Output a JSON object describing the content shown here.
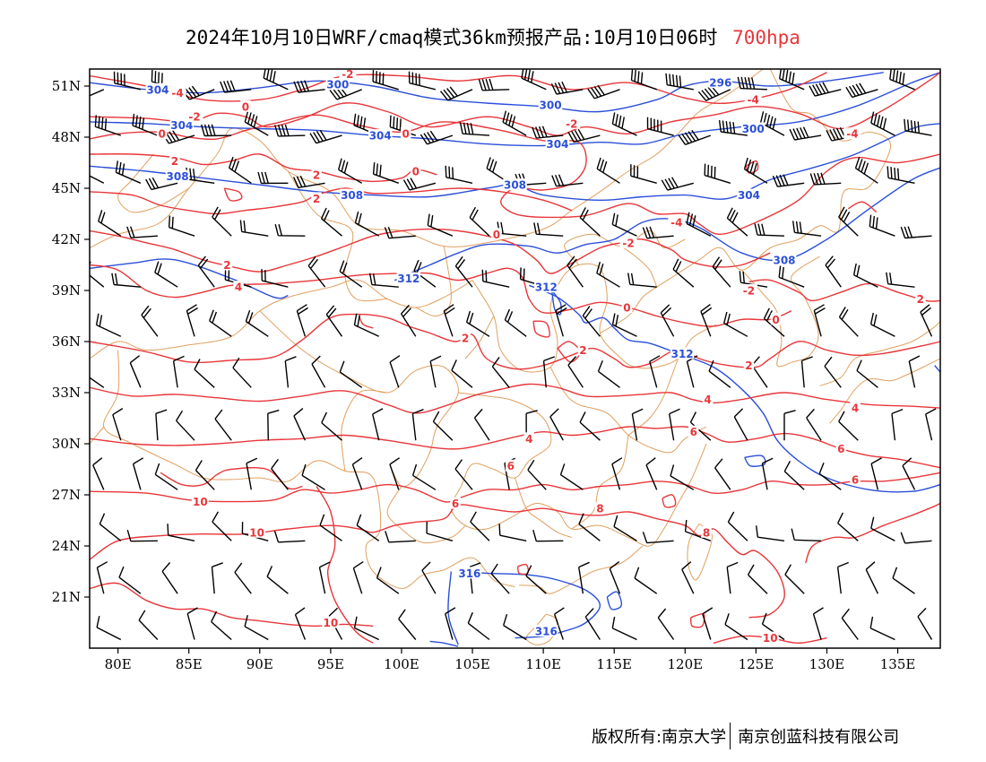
{
  "title": {
    "main": "2024年10月10日WRF/cmaq模式36km预报产品:10月10日06时",
    "level": "700hpa",
    "level_color": "#e8363a"
  },
  "axes": {
    "lat_labels": [
      "51N",
      "48N",
      "45N",
      "42N",
      "39N",
      "36N",
      "33N",
      "30N",
      "27N",
      "24N",
      "21N"
    ],
    "lon_labels": [
      "80E",
      "85E",
      "90E",
      "95E",
      "100E",
      "105E",
      "110E",
      "115E",
      "120E",
      "125E",
      "130E",
      "135E"
    ]
  },
  "legend_colors": {
    "geopotential": "#2b4fd9",
    "temperature": "#e8363a",
    "boundary": "#e0a060",
    "wind": "#000000"
  },
  "contour_labels": {
    "geopotential": [
      {
        "text": "304",
        "lon": 82.8,
        "lat": 50.8
      },
      {
        "text": "300",
        "lon": 95.5,
        "lat": 51.1
      },
      {
        "text": "296",
        "lon": 122.5,
        "lat": 51.2
      },
      {
        "text": "300",
        "lon": 110.5,
        "lat": 49.9
      },
      {
        "text": "304",
        "lon": 84.5,
        "lat": 48.7
      },
      {
        "text": "304",
        "lon": 98.5,
        "lat": 48.1
      },
      {
        "text": "304",
        "lon": 111.0,
        "lat": 47.6
      },
      {
        "text": "300",
        "lon": 124.8,
        "lat": 48.5
      },
      {
        "text": "308",
        "lon": 84.2,
        "lat": 45.7
      },
      {
        "text": "308",
        "lon": 96.5,
        "lat": 44.6
      },
      {
        "text": "308",
        "lon": 108.0,
        "lat": 45.2
      },
      {
        "text": "304",
        "lon": 124.5,
        "lat": 44.6
      },
      {
        "text": "308",
        "lon": 127.0,
        "lat": 40.8
      },
      {
        "text": "312",
        "lon": 100.5,
        "lat": 39.7
      },
      {
        "text": "312",
        "lon": 110.2,
        "lat": 39.2
      },
      {
        "text": "312",
        "lon": 119.8,
        "lat": 35.3
      },
      {
        "text": "316",
        "lon": 104.8,
        "lat": 22.4
      },
      {
        "text": "316",
        "lon": 110.2,
        "lat": 19.0
      }
    ],
    "temperature": [
      {
        "text": "-2",
        "lon": 96.2,
        "lat": 51.7
      },
      {
        "text": "-4",
        "lon": 84.2,
        "lat": 50.6
      },
      {
        "text": "-2",
        "lon": 85.4,
        "lat": 49.2
      },
      {
        "text": "0",
        "lon": 89.0,
        "lat": 49.8
      },
      {
        "text": "0",
        "lon": 83.1,
        "lat": 48.2
      },
      {
        "text": "0",
        "lon": 100.3,
        "lat": 48.2
      },
      {
        "text": "-2",
        "lon": 112.0,
        "lat": 48.8
      },
      {
        "text": "-4",
        "lon": 124.8,
        "lat": 50.2
      },
      {
        "text": "-4",
        "lon": 131.8,
        "lat": 48.2
      },
      {
        "text": "2",
        "lon": 84.0,
        "lat": 46.6
      },
      {
        "text": "0",
        "lon": 101.0,
        "lat": 46.0
      },
      {
        "text": "2",
        "lon": 94.0,
        "lat": 45.8
      },
      {
        "text": "2",
        "lon": 94.0,
        "lat": 44.4
      },
      {
        "text": "-4",
        "lon": 119.4,
        "lat": 43.0
      },
      {
        "text": "0",
        "lon": 106.7,
        "lat": 42.3
      },
      {
        "text": "-2",
        "lon": 116.0,
        "lat": 41.8
      },
      {
        "text": "2",
        "lon": 87.7,
        "lat": 40.5
      },
      {
        "text": "4",
        "lon": 88.5,
        "lat": 39.2
      },
      {
        "text": "-2",
        "lon": 124.5,
        "lat": 39.0
      },
      {
        "text": "0",
        "lon": 115.9,
        "lat": 38.0
      },
      {
        "text": "0",
        "lon": 126.4,
        "lat": 37.3
      },
      {
        "text": "2",
        "lon": 136.6,
        "lat": 38.5
      },
      {
        "text": "2",
        "lon": 104.5,
        "lat": 36.2
      },
      {
        "text": "2",
        "lon": 112.8,
        "lat": 35.5
      },
      {
        "text": "2",
        "lon": 124.5,
        "lat": 34.6
      },
      {
        "text": "4",
        "lon": 121.6,
        "lat": 32.6
      },
      {
        "text": "4",
        "lon": 132.0,
        "lat": 32.1
      },
      {
        "text": "4",
        "lon": 109.0,
        "lat": 30.3
      },
      {
        "text": "6",
        "lon": 120.6,
        "lat": 30.7
      },
      {
        "text": "6",
        "lon": 131.0,
        "lat": 29.7
      },
      {
        "text": "6",
        "lon": 107.7,
        "lat": 28.7
      },
      {
        "text": "6",
        "lon": 132.0,
        "lat": 27.9
      },
      {
        "text": "6",
        "lon": 103.8,
        "lat": 26.5
      },
      {
        "text": "8",
        "lon": 114.0,
        "lat": 26.2
      },
      {
        "text": "8",
        "lon": 121.5,
        "lat": 24.8
      },
      {
        "text": "10",
        "lon": 85.8,
        "lat": 26.6
      },
      {
        "text": "10",
        "lon": 89.8,
        "lat": 24.8
      },
      {
        "text": "10",
        "lon": 95.0,
        "lat": 19.5
      },
      {
        "text": "10",
        "lon": 126.0,
        "lat": 18.6
      }
    ]
  },
  "footer": {
    "left": "版权所有:南京大学",
    "right": "南京创蓝科技有限公司"
  }
}
